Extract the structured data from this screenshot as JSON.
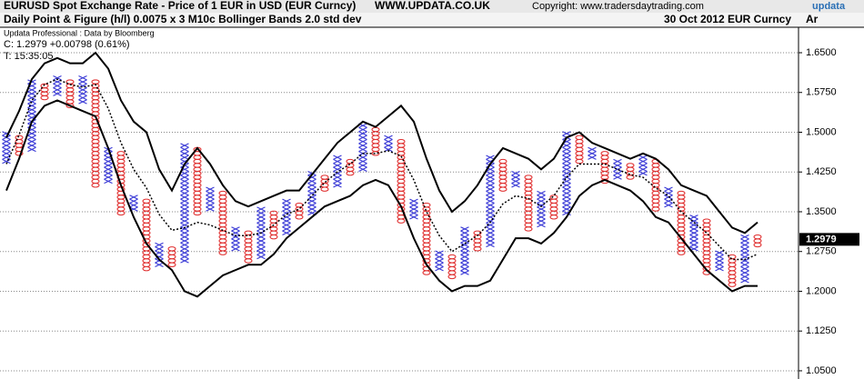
{
  "chart_data": {
    "type": "point_figure",
    "title": "EURUSD Spot Exchange Rate - Price of 1 EUR in USD (EUR Curncy)",
    "site": "WWW.UPDATA.CO.UK",
    "copyright": "Copyright: www.tradersdaytrading.com",
    "subtitle": "Daily Point & Figure (h/l) 0.0075 x 3  M10c Bollinger Bands 2.0 std dev",
    "date_label": "30 Oct 2012  EUR Curncy",
    "source": "Updata Professional : Data by Bloomberg",
    "close_text": "C: 1.2979  +0.00798 (0.61%)",
    "time_text": "T: 15:35:05",
    "brand": "updata",
    "corner": "Ar",
    "last_price": 1.2979,
    "box_size": 0.0075,
    "x_color": "#3b3bd6",
    "o_color": "#e03030",
    "ylim": [
      1.0465,
      1.698
    ],
    "yticks": [
      {
        "value": 1.65,
        "label": "1.6500"
      },
      {
        "value": 1.575,
        "label": "1.5750"
      },
      {
        "value": 1.5,
        "label": "1.5000"
      },
      {
        "value": 1.425,
        "label": "1.4250"
      },
      {
        "value": 1.35,
        "label": "1.3500"
      },
      {
        "value": 1.275,
        "label": "1.2750"
      },
      {
        "value": 1.2,
        "label": "1.2000"
      },
      {
        "value": 1.125,
        "label": "1.1250"
      },
      {
        "value": 1.05,
        "label": "1.0500"
      }
    ],
    "grid": true,
    "columns": [
      {
        "t": "x",
        "lo": 1.445,
        "hi": 1.5
      },
      {
        "t": "o",
        "lo": 1.46,
        "hi": 1.4925
      },
      {
        "t": "x",
        "lo": 1.4675,
        "hi": 1.5975
      },
      {
        "t": "o",
        "lo": 1.565,
        "hi": 1.59
      },
      {
        "t": "x",
        "lo": 1.5725,
        "hi": 1.605
      },
      {
        "t": "o",
        "lo": 1.55,
        "hi": 1.5975
      },
      {
        "t": "x",
        "lo": 1.5575,
        "hi": 1.605
      },
      {
        "t": "o",
        "lo": 1.4,
        "hi": 1.5975
      },
      {
        "t": "x",
        "lo": 1.4075,
        "hi": 1.4675
      },
      {
        "t": "o",
        "lo": 1.3475,
        "hi": 1.46
      },
      {
        "t": "x",
        "lo": 1.355,
        "hi": 1.3775
      },
      {
        "t": "o",
        "lo": 1.2425,
        "hi": 1.37
      },
      {
        "t": "x",
        "lo": 1.25,
        "hi": 1.2875
      },
      {
        "t": "o",
        "lo": 1.25,
        "hi": 1.28
      },
      {
        "t": "x",
        "lo": 1.2575,
        "hi": 1.475
      },
      {
        "t": "o",
        "lo": 1.3475,
        "hi": 1.4675
      },
      {
        "t": "x",
        "lo": 1.355,
        "hi": 1.3925
      },
      {
        "t": "o",
        "lo": 1.2725,
        "hi": 1.385
      },
      {
        "t": "x",
        "lo": 1.28,
        "hi": 1.3175
      },
      {
        "t": "o",
        "lo": 1.2575,
        "hi": 1.31
      },
      {
        "t": "x",
        "lo": 1.265,
        "hi": 1.355
      },
      {
        "t": "o",
        "lo": 1.3025,
        "hi": 1.3475
      },
      {
        "t": "x",
        "lo": 1.31,
        "hi": 1.37
      },
      {
        "t": "o",
        "lo": 1.34,
        "hi": 1.3625
      },
      {
        "t": "x",
        "lo": 1.3475,
        "hi": 1.4225
      },
      {
        "t": "o",
        "lo": 1.3925,
        "hi": 1.415
      },
      {
        "t": "x",
        "lo": 1.4,
        "hi": 1.4525
      },
      {
        "t": "o",
        "lo": 1.4225,
        "hi": 1.445
      },
      {
        "t": "x",
        "lo": 1.43,
        "hi": 1.5125
      },
      {
        "t": "o",
        "lo": 1.46,
        "hi": 1.505
      },
      {
        "t": "x",
        "lo": 1.4675,
        "hi": 1.49
      },
      {
        "t": "o",
        "lo": 1.3325,
        "hi": 1.4825
      },
      {
        "t": "x",
        "lo": 1.34,
        "hi": 1.37
      },
      {
        "t": "o",
        "lo": 1.235,
        "hi": 1.3625
      },
      {
        "t": "x",
        "lo": 1.2425,
        "hi": 1.2725
      },
      {
        "t": "o",
        "lo": 1.2275,
        "hi": 1.265
      },
      {
        "t": "x",
        "lo": 1.235,
        "hi": 1.3175
      },
      {
        "t": "o",
        "lo": 1.28,
        "hi": 1.31
      },
      {
        "t": "x",
        "lo": 1.2875,
        "hi": 1.4525
      },
      {
        "t": "o",
        "lo": 1.3925,
        "hi": 1.445
      },
      {
        "t": "x",
        "lo": 1.4,
        "hi": 1.4225
      },
      {
        "t": "o",
        "lo": 1.3175,
        "hi": 1.415
      },
      {
        "t": "x",
        "lo": 1.325,
        "hi": 1.385
      },
      {
        "t": "o",
        "lo": 1.34,
        "hi": 1.3775
      },
      {
        "t": "x",
        "lo": 1.3475,
        "hi": 1.4975
      },
      {
        "t": "o",
        "lo": 1.445,
        "hi": 1.49
      },
      {
        "t": "x",
        "lo": 1.4525,
        "hi": 1.4675
      },
      {
        "t": "o",
        "lo": 1.4075,
        "hi": 1.46
      },
      {
        "t": "x",
        "lo": 1.415,
        "hi": 1.445
      },
      {
        "t": "o",
        "lo": 1.415,
        "hi": 1.4375
      },
      {
        "t": "x",
        "lo": 1.4225,
        "hi": 1.4525
      },
      {
        "t": "o",
        "lo": 1.355,
        "hi": 1.445
      },
      {
        "t": "x",
        "lo": 1.3625,
        "hi": 1.3925
      },
      {
        "t": "o",
        "lo": 1.2725,
        "hi": 1.385
      },
      {
        "t": "x",
        "lo": 1.28,
        "hi": 1.34
      },
      {
        "t": "o",
        "lo": 1.235,
        "hi": 1.3325
      },
      {
        "t": "x",
        "lo": 1.2425,
        "hi": 1.2725
      },
      {
        "t": "o",
        "lo": 1.2125,
        "hi": 1.265
      },
      {
        "t": "x",
        "lo": 1.22,
        "hi": 1.3025
      },
      {
        "t": "o",
        "lo": 1.2875,
        "hi": 1.3025
      }
    ],
    "bands": [
      {
        "style": "solid",
        "values": [
          1.49,
          1.54,
          1.6,
          1.63,
          1.64,
          1.63,
          1.63,
          1.65,
          1.62,
          1.56,
          1.52,
          1.5,
          1.43,
          1.39,
          1.44,
          1.47,
          1.44,
          1.4,
          1.37,
          1.36,
          1.37,
          1.38,
          1.39,
          1.39,
          1.42,
          1.45,
          1.48,
          1.5,
          1.52,
          1.51,
          1.53,
          1.55,
          1.52,
          1.45,
          1.39,
          1.35,
          1.37,
          1.4,
          1.44,
          1.47,
          1.46,
          1.45,
          1.43,
          1.45,
          1.49,
          1.5,
          1.48,
          1.47,
          1.46,
          1.45,
          1.46,
          1.45,
          1.43,
          1.4,
          1.39,
          1.38,
          1.35,
          1.32,
          1.31,
          1.33
        ]
      },
      {
        "style": "dotted",
        "values": [
          1.44,
          1.495,
          1.56,
          1.59,
          1.6,
          1.59,
          1.585,
          1.59,
          1.545,
          1.48,
          1.43,
          1.395,
          1.345,
          1.315,
          1.32,
          1.33,
          1.325,
          1.315,
          1.305,
          1.305,
          1.31,
          1.325,
          1.345,
          1.355,
          1.38,
          1.405,
          1.425,
          1.44,
          1.46,
          1.46,
          1.465,
          1.455,
          1.41,
          1.35,
          1.305,
          1.275,
          1.29,
          1.305,
          1.33,
          1.365,
          1.38,
          1.375,
          1.36,
          1.38,
          1.415,
          1.44,
          1.44,
          1.44,
          1.43,
          1.42,
          1.415,
          1.395,
          1.38,
          1.35,
          1.33,
          1.31,
          1.285,
          1.26,
          1.26,
          1.27
        ]
      },
      {
        "style": "solid",
        "values": [
          1.39,
          1.45,
          1.52,
          1.55,
          1.56,
          1.55,
          1.54,
          1.53,
          1.47,
          1.4,
          1.34,
          1.29,
          1.26,
          1.24,
          1.2,
          1.19,
          1.21,
          1.23,
          1.24,
          1.25,
          1.25,
          1.27,
          1.3,
          1.32,
          1.34,
          1.36,
          1.37,
          1.38,
          1.4,
          1.41,
          1.4,
          1.36,
          1.3,
          1.25,
          1.22,
          1.2,
          1.21,
          1.21,
          1.22,
          1.26,
          1.3,
          1.3,
          1.29,
          1.31,
          1.34,
          1.38,
          1.4,
          1.41,
          1.4,
          1.39,
          1.37,
          1.34,
          1.33,
          1.3,
          1.27,
          1.24,
          1.22,
          1.2,
          1.21,
          1.21
        ]
      }
    ]
  }
}
